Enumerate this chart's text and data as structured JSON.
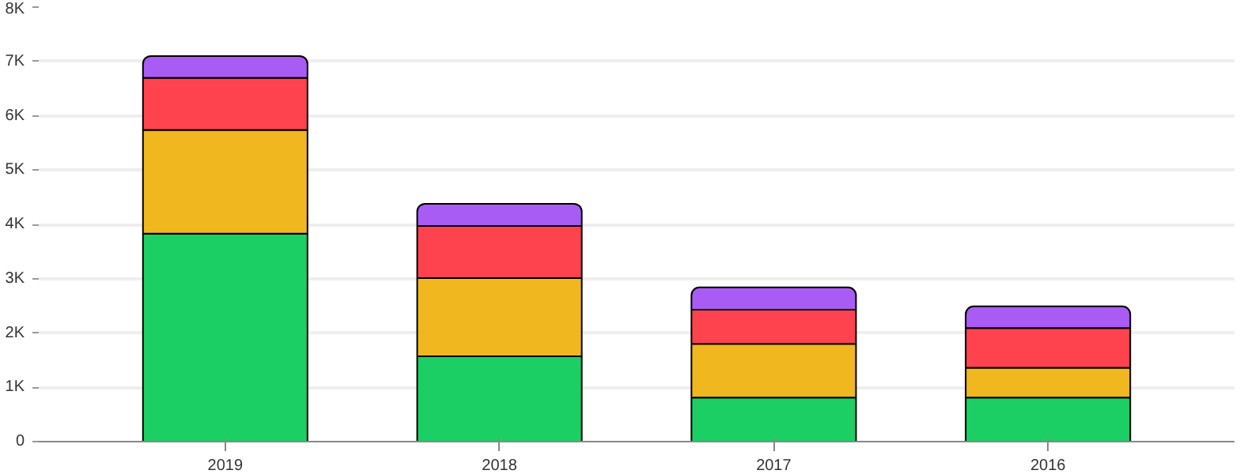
{
  "chart_data": {
    "type": "bar",
    "stacked": true,
    "categories": [
      "2019",
      "2018",
      "2017",
      "2016"
    ],
    "series": [
      {
        "color": "#1ccf64",
        "values": [
          3830,
          1570,
          810,
          810
        ]
      },
      {
        "color": "#f0b71e",
        "values": [
          1910,
          1440,
          990,
          550
        ]
      },
      {
        "color": "#fe434f",
        "values": [
          960,
          960,
          630,
          730
        ]
      },
      {
        "color": "#a95cf4",
        "values": [
          400,
          410,
          410,
          400
        ]
      }
    ],
    "ylim": [
      0,
      8000
    ],
    "yticks": [
      {
        "value": 0,
        "label": "0"
      },
      {
        "value": 1000,
        "label": "1K"
      },
      {
        "value": 2000,
        "label": "2K"
      },
      {
        "value": 3000,
        "label": "3K"
      },
      {
        "value": 4000,
        "label": "4K"
      },
      {
        "value": 5000,
        "label": "5K"
      },
      {
        "value": 6000,
        "label": "6K"
      },
      {
        "value": 7000,
        "label": "7K"
      },
      {
        "value": 8000,
        "label": "8K"
      }
    ],
    "grid": "y"
  }
}
